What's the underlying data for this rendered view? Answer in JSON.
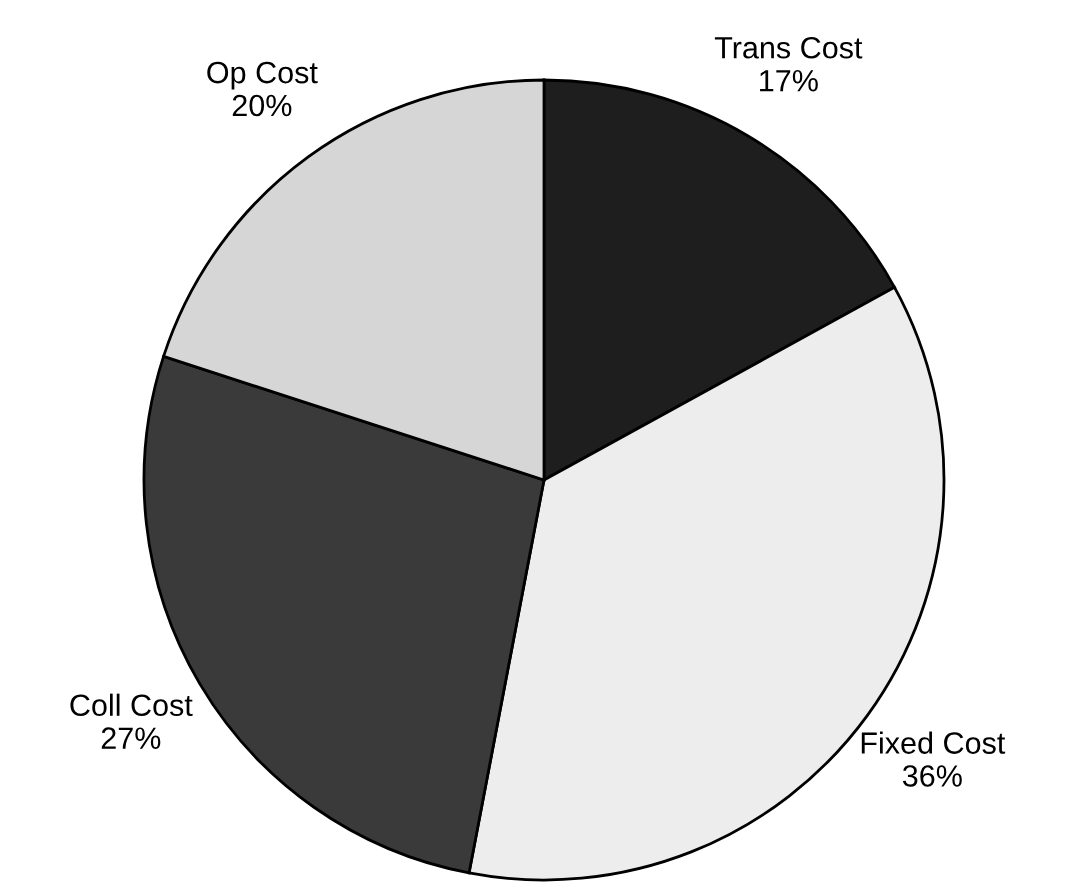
{
  "chart_data": {
    "type": "pie",
    "categories": [
      "Trans Cost",
      "Fixed Cost",
      "Coll Cost",
      "Op Cost"
    ],
    "values": [
      17,
      36,
      27,
      20
    ],
    "value_labels": [
      "17%",
      "36%",
      "27%",
      "20%"
    ],
    "colors": [
      "#1e1e1e",
      "#ededed",
      "#3a3a3a",
      "#d6d6d6"
    ]
  }
}
